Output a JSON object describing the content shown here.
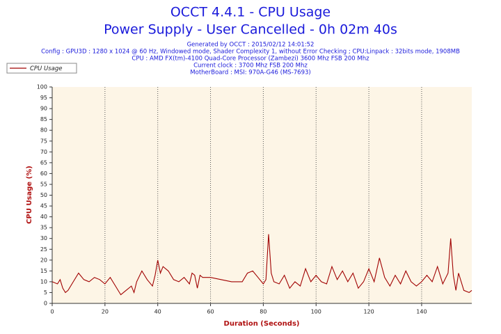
{
  "chart_data": {
    "type": "line",
    "title": "OCCT 4.4.1 - CPU Usage",
    "subtitle": "Power Supply - User Cancelled - 0h 02m 40s",
    "info": [
      "Generated by OCCT : 2015/02/12 14:01:52",
      "Config : GPU3D : 1280 x 1024 @ 60 Hz, Windowed mode, Shader Complexity 1, without Error Checking ; CPU:Linpack : 32bits mode, 1908MB",
      "CPU : AMD FX(tm)-4100 Quad-Core Processor (Zambezi) 3600 Mhz FSB 200 Mhz",
      "Current clock : 3700 Mhz FSB 200 Mhz",
      "MotherBoard : MSI: 970A-G46 (MS-7693)"
    ],
    "x_label": "Duration (Seconds)",
    "y_label": "CPU Usage (%)",
    "x": [
      0,
      2,
      3,
      4,
      5,
      6,
      8,
      10,
      12,
      14,
      16,
      18,
      20,
      22,
      24,
      26,
      28,
      30,
      31,
      32,
      34,
      36,
      38,
      39,
      40,
      41,
      42,
      44,
      46,
      48,
      50,
      52,
      53,
      54,
      55,
      56,
      57,
      60,
      64,
      68,
      72,
      74,
      76,
      78,
      80,
      81,
      82,
      83,
      84,
      86,
      88,
      90,
      92,
      94,
      96,
      98,
      100,
      102,
      104,
      106,
      108,
      110,
      112,
      114,
      116,
      118,
      120,
      122,
      124,
      126,
      128,
      130,
      132,
      134,
      136,
      138,
      140,
      142,
      144,
      146,
      148,
      150,
      151,
      152,
      153,
      154,
      156,
      158,
      159
    ],
    "series": [
      {
        "name": "CPU Usage",
        "color": "#a00000",
        "values": [
          10,
          9,
          11,
          7,
          5,
          6,
          10,
          14,
          11,
          10,
          12,
          11,
          9,
          12,
          8,
          4,
          6,
          8,
          5,
          10,
          15,
          11,
          8,
          13,
          20,
          14,
          17,
          15,
          11,
          10,
          12,
          9,
          14,
          13,
          7,
          13,
          12,
          12,
          11,
          10,
          10,
          14,
          15,
          12,
          9,
          11,
          32,
          14,
          10,
          9,
          13,
          7,
          10,
          8,
          16,
          10,
          13,
          10,
          9,
          17,
          11,
          15,
          10,
          14,
          7,
          10,
          16,
          10,
          21,
          12,
          8,
          13,
          9,
          15,
          10,
          8,
          10,
          13,
          10,
          17,
          9,
          14,
          30,
          13,
          6,
          14,
          6,
          5,
          6
        ]
      }
    ],
    "xlim": [
      0,
      159
    ],
    "ylim": [
      0,
      100
    ],
    "xticks": [
      0,
      20,
      40,
      60,
      80,
      100,
      120,
      140
    ],
    "yticks": [
      0,
      5,
      10,
      15,
      20,
      25,
      30,
      35,
      40,
      45,
      50,
      55,
      60,
      65,
      70,
      75,
      80,
      85,
      90,
      95,
      100
    ],
    "grid": "x",
    "legend": "top-left",
    "plot_background": "#fdf5e6"
  }
}
